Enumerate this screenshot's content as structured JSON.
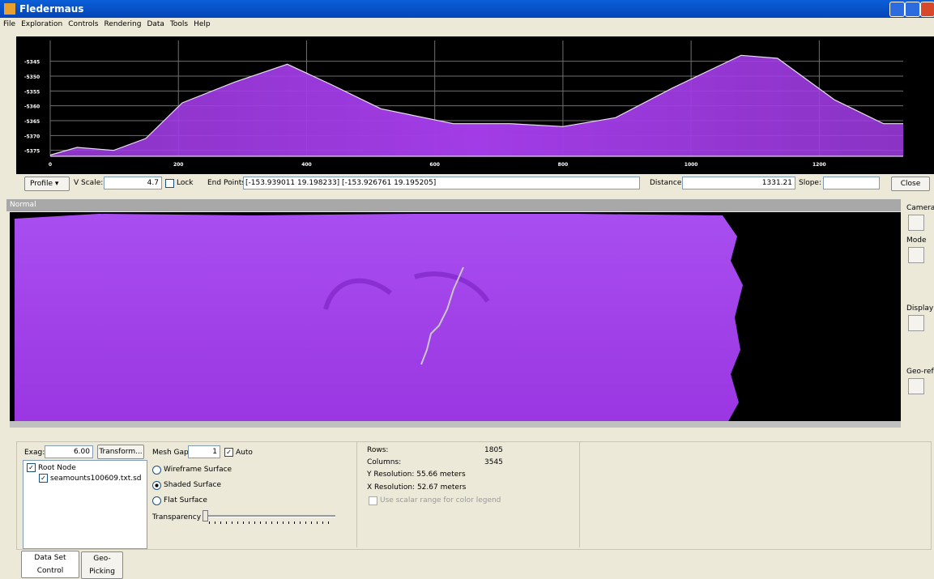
{
  "window": {
    "title": "Fledermaus"
  },
  "menu": [
    "File",
    "Exploration",
    "Controls",
    "Rendering",
    "Data",
    "Tools",
    "Help"
  ],
  "profile": {
    "type": "area",
    "color": "#a23ce6",
    "line_color": "#e8e0f0",
    "x": [
      0,
      42,
      99,
      149,
      206,
      288,
      370,
      440,
      516,
      629,
      718,
      800,
      882,
      971,
      1078,
      1135,
      1224,
      1300,
      1331
    ],
    "values": [
      -5376.6,
      -5374,
      -5375,
      -5371,
      -5359,
      -5352,
      -5346,
      -5353,
      -5361,
      -5366,
      -5366,
      -5367,
      -5364,
      -5354,
      -5343,
      -5344,
      -5358,
      -5366,
      -5366
    ],
    "xlim": [
      0,
      1331
    ],
    "ylim": [
      -5377,
      -5338
    ],
    "xticks": [
      0,
      200,
      400,
      600,
      800,
      1000,
      1200
    ],
    "yticks": [
      -5345,
      -5350,
      -5355,
      -5360,
      -5365,
      -5370,
      -5375
    ]
  },
  "profile_toolbar": {
    "mode": "Profile",
    "vscale_label": "V Scale:",
    "vscale": "4.7",
    "lock": "Lock",
    "endpoints_label": "End Points:",
    "endpoints": "[-153.939011 19.198233] [-153.926761 19.195205]",
    "distance_label": "Distance:",
    "distance": "1331.21",
    "slope_label": "Slope:",
    "close": "Close"
  },
  "view": {
    "mode": "Normal"
  },
  "side_toolbar": [
    "Camera",
    "Mode",
    "Display",
    "Geo-ref"
  ],
  "controls": {
    "exag_label": "Exag:",
    "exag": "6.00",
    "transform": "Transform...",
    "tree": [
      "Root Node",
      "seamounts100609.txt.sd"
    ],
    "mesh_gap_label": "Mesh Gap:",
    "mesh_gap": "1",
    "auto": "Auto",
    "surfaces": [
      "Wireframe Surface",
      "Shaded Surface",
      "Flat Surface"
    ],
    "transparency": "Transparency",
    "rows_label": "Rows:",
    "rows": "1805",
    "columns_label": "Columns:",
    "columns": "3545",
    "y_resolution": "Y Resolution: 55.66 meters",
    "x_resolution": "X Resolution: 52.67 meters",
    "scalar_range": "Use scalar range for color legend"
  },
  "tabs": [
    "Data Set Control",
    "Geo-Picking"
  ]
}
